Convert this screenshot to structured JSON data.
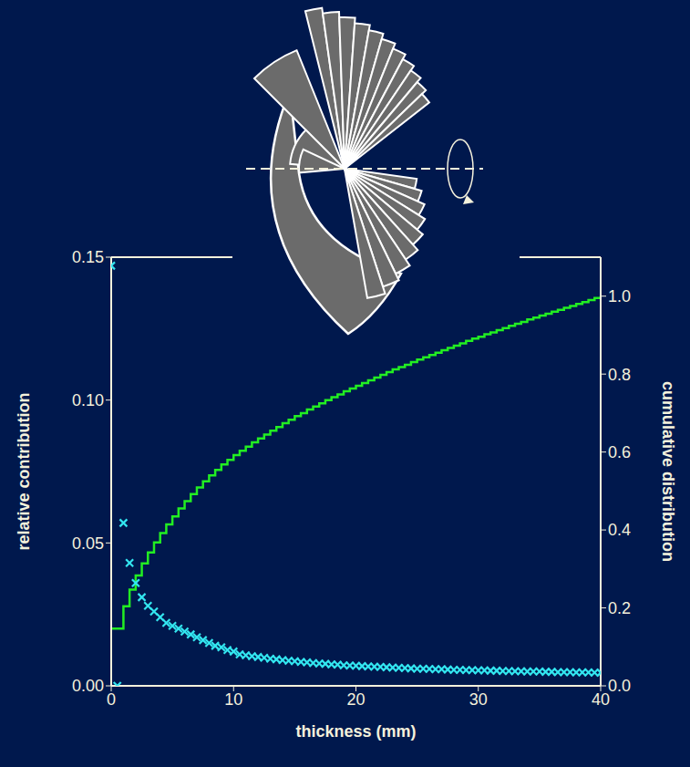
{
  "chart_data": {
    "type": "scatter",
    "xlabel": "thickness (mm)",
    "ylabel": "relative contribution",
    "y2label": "cumulative distribution",
    "x": [
      0,
      0.5,
      1,
      1.5,
      2,
      2.5,
      3,
      3.5,
      4,
      4.5,
      5,
      5.5,
      6,
      6.5,
      7,
      7.5,
      8,
      8.5,
      9,
      9.5,
      10,
      10.5,
      11,
      11.5,
      12,
      12.5,
      13,
      13.5,
      14,
      14.5,
      15,
      15.5,
      16,
      16.5,
      17,
      17.5,
      18,
      18.5,
      19,
      19.5,
      20,
      20.5,
      21,
      21.5,
      22,
      22.5,
      23,
      23.5,
      24,
      24.5,
      25,
      25.5,
      26,
      26.5,
      27,
      27.5,
      28,
      28.5,
      29,
      29.5,
      30,
      30.5,
      31,
      31.5,
      32,
      32.5,
      33,
      33.5,
      34,
      34.5,
      35,
      35.5,
      36,
      36.5,
      37,
      37.5,
      38,
      38.5,
      39,
      39.5,
      40
    ],
    "series": [
      {
        "name": "relative contribution",
        "color": "#33e6f0",
        "type": "scatter",
        "marker": "x",
        "values": [
          0.147,
          0,
          0.057,
          0.043,
          0.036,
          0.031,
          0.028,
          0.026,
          0.024,
          0.022,
          0.021,
          0.02,
          0.019,
          0.018,
          0.017,
          0.016,
          0.015,
          0.014,
          0.0135,
          0.0125,
          0.012,
          0.011,
          0.0107,
          0.0104,
          0.0101,
          0.0098,
          0.0095,
          0.0093,
          0.009,
          0.0088,
          0.0086,
          0.0084,
          0.0082,
          0.008,
          0.0078,
          0.0077,
          0.0075,
          0.0074,
          0.0072,
          0.0071,
          0.007,
          0.0069,
          0.0068,
          0.0067,
          0.0066,
          0.0065,
          0.0064,
          0.0063,
          0.0062,
          0.0061,
          0.006,
          0.006,
          0.0059,
          0.0058,
          0.0058,
          0.0057,
          0.0056,
          0.0056,
          0.0055,
          0.0055,
          0.0054,
          0.0054,
          0.0053,
          0.0053,
          0.0052,
          0.0052,
          0.0051,
          0.0051,
          0.005,
          0.005,
          0.005,
          0.0049,
          0.0049,
          0.0048,
          0.0048,
          0.0048,
          0.0047,
          0.0047,
          0.0047,
          0.0046,
          0.0046
        ]
      },
      {
        "name": "cumulative distribution",
        "color": "#22ee22",
        "type": "step",
        "axis": "y2",
        "values": [
          0.147,
          0.147,
          0.204,
          0.247,
          0.283,
          0.314,
          0.342,
          0.368,
          0.392,
          0.414,
          0.435,
          0.455,
          0.474,
          0.492,
          0.509,
          0.525,
          0.54,
          0.554,
          0.568,
          0.58,
          0.592,
          0.603,
          0.614,
          0.625,
          0.635,
          0.645,
          0.655,
          0.664,
          0.674,
          0.683,
          0.692,
          0.7,
          0.709,
          0.717,
          0.725,
          0.733,
          0.741,
          0.748,
          0.756,
          0.763,
          0.77,
          0.777,
          0.784,
          0.791,
          0.798,
          0.805,
          0.812,
          0.818,
          0.824,
          0.831,
          0.837,
          0.843,
          0.849,
          0.855,
          0.861,
          0.867,
          0.873,
          0.879,
          0.885,
          0.891,
          0.896,
          0.902,
          0.907,
          0.913,
          0.918,
          0.924,
          0.929,
          0.934,
          0.94,
          0.945,
          0.95,
          0.955,
          0.96,
          0.965,
          0.97,
          0.975,
          0.98,
          0.985,
          0.99,
          0.995,
          1.0
        ]
      }
    ],
    "xlim": [
      0,
      40
    ],
    "xticks": [
      0,
      10,
      20,
      30,
      40
    ],
    "ylim": [
      0,
      0.15
    ],
    "yticks": [
      {
        "value": 0,
        "label": "0.00"
      },
      0.05,
      {
        "value": 0.1,
        "label": "0.10"
      },
      0.15
    ],
    "y2lim": [
      0,
      1.1
    ],
    "y2ticks": [
      {
        "value": 0,
        "label": "0.0"
      },
      0.2,
      0.4,
      0.6,
      0.8,
      {
        "value": 1,
        "label": "1.0"
      }
    ],
    "grid": false
  }
}
